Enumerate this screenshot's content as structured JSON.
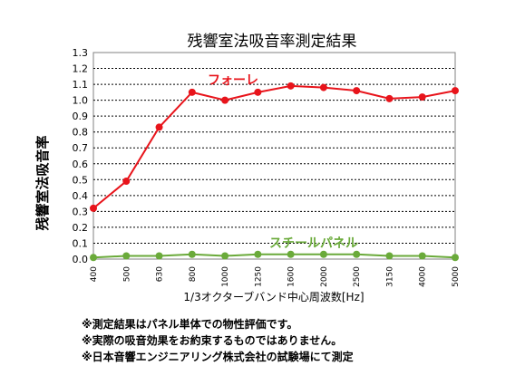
{
  "chart_data": {
    "type": "line",
    "title": "残響室法吸音率測定結果",
    "xlabel": "1/3オクターブバンド中心周波数[Hz]",
    "ylabel": "残響室法吸音率",
    "categories": [
      "400",
      "500",
      "630",
      "800",
      "1000",
      "1250",
      "1600",
      "2000",
      "2500",
      "3150",
      "4000",
      "5000"
    ],
    "ylim": [
      0,
      1.3
    ],
    "yticks": [
      "0.0",
      "0.1",
      "0.2",
      "0.3",
      "0.4",
      "0.5",
      "0.6",
      "0.7",
      "0.8",
      "0.9",
      "1.0",
      "1.1",
      "1.2",
      "1.3"
    ],
    "grid": true,
    "series": [
      {
        "name": "フォーレ",
        "color": "#e8141b",
        "values": [
          0.32,
          0.49,
          0.83,
          1.05,
          1.0,
          1.05,
          1.09,
          1.08,
          1.06,
          1.01,
          1.02,
          1.06
        ]
      },
      {
        "name": "スチールパネル",
        "color": "#6aaa3a",
        "values": [
          0.01,
          0.02,
          0.02,
          0.03,
          0.02,
          0.03,
          0.03,
          0.03,
          0.03,
          0.02,
          0.02,
          0.01
        ]
      }
    ],
    "notes": [
      "※測定結果はパネル単体での物性評価です。",
      "※実際の吸音効果をお約束するものではありません。",
      "※日本音響エンジニアリング株式会社の試験場にて測定"
    ]
  }
}
